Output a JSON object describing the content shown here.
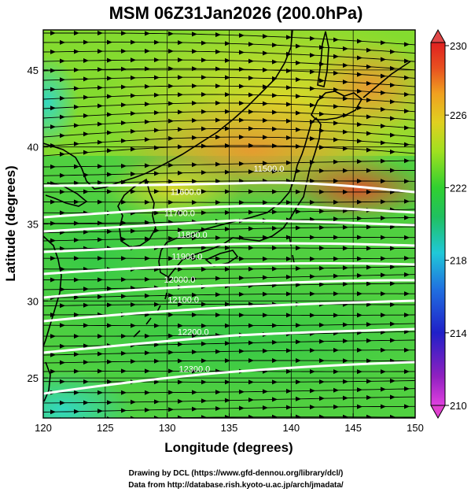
{
  "title": "MSM 06Z31Jan2026 (200.0hPa)",
  "xlabel": "Longitude (degrees)",
  "ylabel": "Latitude  (degrees)",
  "credits": [
    "Drawing by DCL (https://www.gfd-dennou.org/library/dcl/)",
    "Data from http://database.rish.kyoto-u.ac.jp/arch/jmadata/"
  ],
  "chart_data": {
    "type": "heatmap",
    "title": "MSM 06Z31Jan2026 (200.0hPa)",
    "xlabel": "Longitude (degrees)",
    "ylabel": "Latitude  (degrees)",
    "xlim": [
      120,
      150
    ],
    "ylim": [
      22.4,
      47.6
    ],
    "xticks": [
      "120",
      "125",
      "130",
      "135",
      "140",
      "145",
      "150"
    ],
    "yticks": [
      "25",
      "30",
      "35",
      "40",
      "45"
    ],
    "colorbar": {
      "min": 210,
      "max": 230,
      "ticks": [
        "230",
        "226",
        "222",
        "218",
        "214",
        "210"
      ],
      "colors": [
        "#e040e0",
        "#8020c0",
        "#2020c0",
        "#2080e0",
        "#20d0d0",
        "#20c060",
        "#30d030",
        "#a0e020",
        "#e0d020",
        "#f0a020",
        "#e84020",
        "#e02020"
      ]
    },
    "contour_labels": [
      {
        "text": "11500.0",
        "lon": 138.2,
        "lat": 38.4
      },
      {
        "text": "11600.0",
        "lon": 131.5,
        "lat": 36.9
      },
      {
        "text": "11700.0",
        "lon": 131.0,
        "lat": 35.5
      },
      {
        "text": "11800.0",
        "lon": 132.0,
        "lat": 34.1
      },
      {
        "text": "11900.0",
        "lon": 131.6,
        "lat": 32.7
      },
      {
        "text": "12000.0",
        "lon": 131.0,
        "lat": 31.2
      },
      {
        "text": "12100.0",
        "lon": 131.3,
        "lat": 29.9
      },
      {
        "text": "12200.0",
        "lon": 132.1,
        "lat": 27.8
      },
      {
        "text": "12300.0",
        "lon": 132.2,
        "lat": 25.4
      }
    ],
    "wind": "streamlines westerly, flow west to east"
  }
}
